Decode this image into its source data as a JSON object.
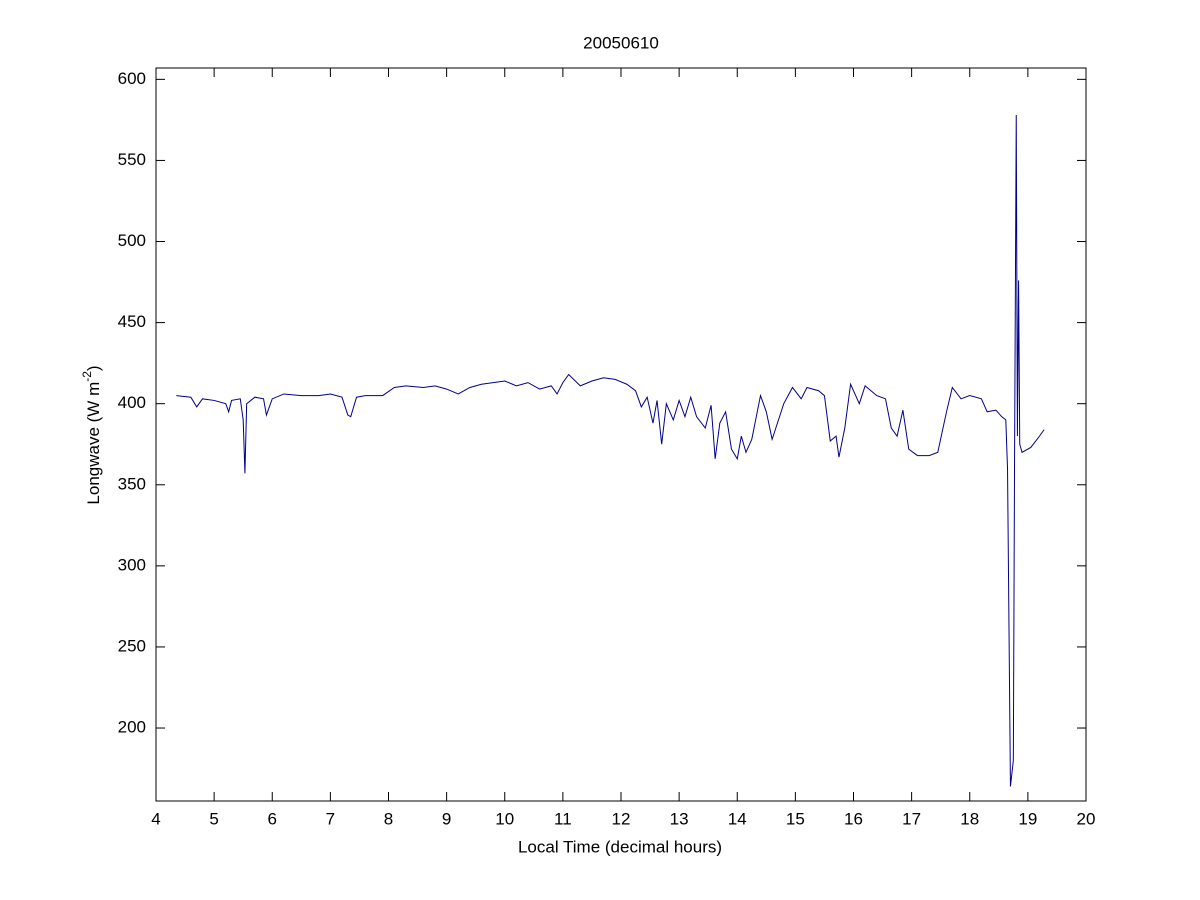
{
  "chart_data": {
    "type": "line",
    "title": "20050610",
    "xlabel": "Local Time (decimal hours)",
    "ylabel": {
      "text": "Longwave (W m",
      "superscript": "-2",
      "suffix": ")"
    },
    "xlim": [
      4,
      20
    ],
    "xticks": [
      4,
      5,
      6,
      7,
      8,
      9,
      10,
      11,
      12,
      13,
      14,
      15,
      16,
      17,
      18,
      19,
      20
    ],
    "ylim": [
      155,
      607
    ],
    "yticks": [
      200,
      250,
      300,
      350,
      400,
      450,
      500,
      550,
      600
    ],
    "grid": false,
    "x": [
      4.35,
      4.6,
      4.7,
      4.8,
      5.0,
      5.2,
      5.25,
      5.3,
      5.45,
      5.5,
      5.53,
      5.56,
      5.7,
      5.85,
      5.9,
      6.0,
      6.2,
      6.5,
      6.8,
      7.0,
      7.2,
      7.3,
      7.35,
      7.45,
      7.6,
      7.9,
      8.1,
      8.3,
      8.6,
      8.8,
      9.0,
      9.2,
      9.4,
      9.6,
      9.8,
      10.0,
      10.2,
      10.4,
      10.6,
      10.8,
      10.9,
      11.0,
      11.1,
      11.3,
      11.5,
      11.7,
      11.9,
      12.1,
      12.25,
      12.35,
      12.45,
      12.55,
      12.62,
      12.7,
      12.78,
      12.9,
      13.0,
      13.1,
      13.2,
      13.3,
      13.45,
      13.55,
      13.62,
      13.7,
      13.8,
      13.9,
      14.0,
      14.07,
      14.15,
      14.25,
      14.4,
      14.5,
      14.6,
      14.8,
      14.95,
      15.1,
      15.2,
      15.4,
      15.5,
      15.6,
      15.7,
      15.75,
      15.85,
      15.95,
      16.1,
      16.2,
      16.4,
      16.55,
      16.65,
      16.75,
      16.85,
      16.95,
      17.1,
      17.3,
      17.45,
      17.6,
      17.7,
      17.85,
      18.0,
      18.2,
      18.3,
      18.45,
      18.55,
      18.62,
      18.65,
      18.7,
      18.75,
      18.77,
      18.8,
      18.82,
      18.84,
      18.86,
      18.9,
      19.05,
      19.2,
      19.28
    ],
    "series": [
      {
        "color": "#00008b",
        "values": [
          405,
          404,
          398,
          403,
          402,
          400,
          395,
          402,
          403,
          390,
          357,
          400,
          404,
          403,
          393,
          403,
          406,
          405,
          405,
          406,
          404,
          393,
          392,
          404,
          405,
          405,
          410,
          411,
          410,
          411,
          409,
          406,
          410,
          412,
          413,
          414,
          411,
          413,
          409,
          411,
          406,
          413,
          418,
          411,
          414,
          416,
          415,
          412,
          408,
          398,
          404,
          388,
          402,
          375,
          400,
          390,
          402,
          392,
          404,
          392,
          385,
          399,
          366,
          388,
          395,
          372,
          366,
          380,
          370,
          378,
          405,
          395,
          378,
          400,
          410,
          403,
          410,
          408,
          405,
          377,
          380,
          367,
          385,
          412,
          400,
          411,
          405,
          403,
          385,
          380,
          396,
          372,
          368,
          368,
          370,
          395,
          410,
          403,
          405,
          403,
          395,
          396,
          392,
          390,
          360,
          164,
          180,
          360,
          578,
          380,
          476,
          375,
          370,
          373,
          380,
          384
        ]
      }
    ]
  }
}
